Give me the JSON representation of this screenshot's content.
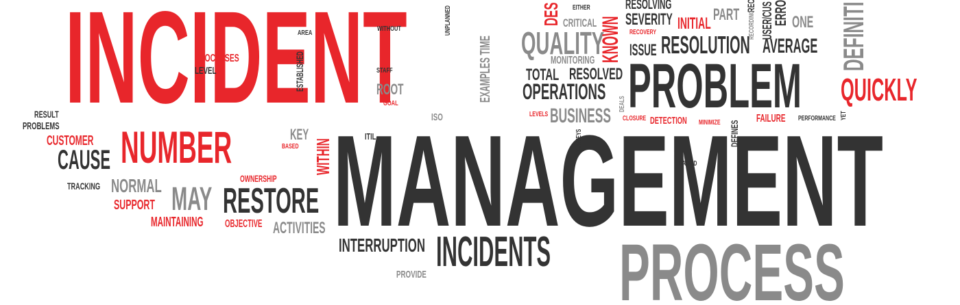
{
  "colors": {
    "red": "#e8262b",
    "dark": "#333333",
    "gray": "#8a8a8a"
  },
  "words": {
    "incident": "INCIDENT",
    "management": "MANAGEMENT",
    "process": "PROCESS",
    "problem": "PROBLEM",
    "number": "NUMBER",
    "incidents": "INCIDENTS",
    "restore": "RESTORE",
    "quality": "QUALITY",
    "quickly": "QUICKLY",
    "resolution": "RESOLUTION",
    "average": "AVERAGE",
    "cause": "CAUSE",
    "may": "MAY",
    "normal": "NORMAL",
    "business": "BUSINESS",
    "operations": "OPERATIONS",
    "interruption": "INTERRUPTION",
    "within": "WITHIN",
    "known": "KNOWN",
    "definition": "DEFINITI",
    "des": "DES",
    "customer": "CUSTOMER",
    "support": "SUPPORT",
    "maintaining": "MAINTAINING",
    "objective": "OBJECTIVE",
    "activities": "ACTIVITIES",
    "provide": "PROVIDE",
    "tracking": "TRACKING",
    "result": "RESULT",
    "problems": "PROBLEMS",
    "key": "KEY",
    "based": "BASED",
    "ownership": "OWNERSHIP",
    "processes": "PROCESSES",
    "level": "LEVEL",
    "established": "ESTABLISHED",
    "area": "AREA",
    "without": "WITHOUT",
    "staff": "STAFF",
    "root": "ROOT",
    "goal": "GOAL",
    "iso": "ISO",
    "itil": "ITIL",
    "unplanned": "UNPLANNED",
    "examples_time": "EXAMPLES TIME",
    "critical": "CRITICAL",
    "either": "EITHER",
    "monitoring": "MONITORING",
    "total": "TOTAL",
    "resolved": "RESOLVED",
    "levels": "LEVELS",
    "surveys": "SURVEYS",
    "deals": "DEALS",
    "resolving": "RESOLVING",
    "severity": "SEVERITY",
    "initial": "INITIAL",
    "recovery": "RECOVERY",
    "issue": "ISSUE",
    "part": "PART",
    "one": "ONE",
    "rec": "REC",
    "recording": "RECORDING",
    "user_cus": "USER/CUS",
    "error": "ERROR",
    "closure": "CLOSURE",
    "detection": "DETECTION",
    "minimize": "MINIMIZE",
    "failure": "FAILURE",
    "performance": "PERFORMANCE",
    "yet": "YET",
    "defines": "DEFINES",
    "raised": "RAISED"
  }
}
